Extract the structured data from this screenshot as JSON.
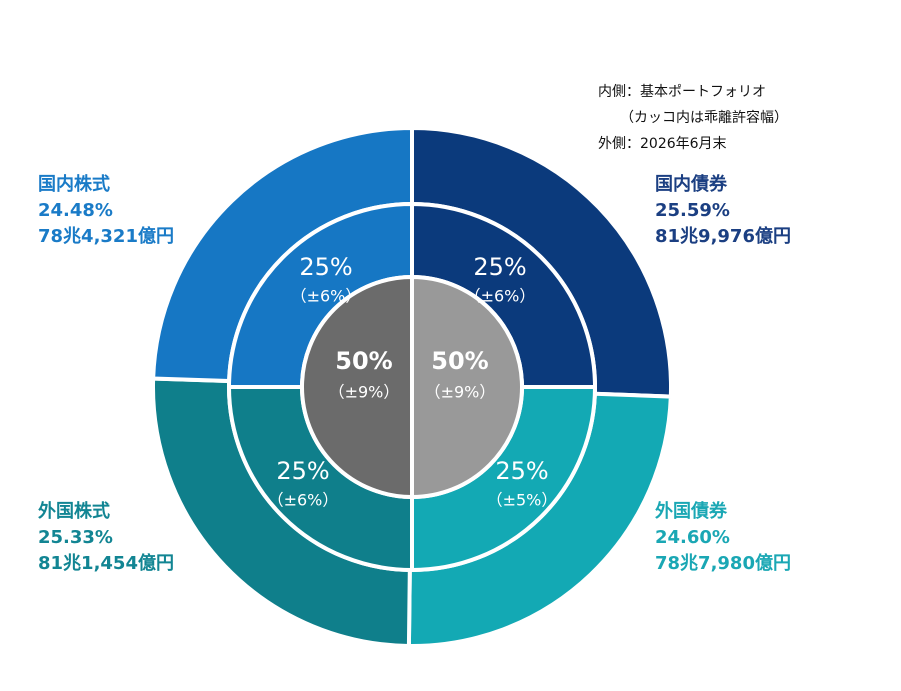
{
  "chart_data": {
    "type": "nested-pie",
    "notes": [
      "内側：基本ポートフォリオ",
      "（カッコ内は乖離許容幅）",
      "外側：2026年6月末"
    ],
    "outer": {
      "categories": [
        "国内債券",
        "外国債券",
        "外国株式",
        "国内株式"
      ],
      "values": [
        25.59,
        24.6,
        25.33,
        24.48
      ],
      "value_labels": [
        "25.59%",
        "24.60%",
        "25.33%",
        "24.48%"
      ],
      "amounts": [
        "81兆9,976億円",
        "78兆7,980億円",
        "81兆1,454億円",
        "78兆4,321億円"
      ],
      "colors": [
        "#0b3a7c",
        "#13a9b4",
        "#0f7f8b",
        "#1677c4"
      ],
      "label_colors": [
        "#1b3f82",
        "#1aa7b4",
        "#128593",
        "#1a7bc7"
      ]
    },
    "middle": {
      "values": [
        25,
        25,
        25,
        25
      ],
      "value_labels": [
        "25%",
        "25%",
        "25%",
        "25%"
      ],
      "bands": [
        "（±6%）",
        "（±5%）",
        "（±6%）",
        "（±6%）"
      ],
      "colors": [
        "#0b3a7c",
        "#13a9b4",
        "#0f7f8b",
        "#1677c4"
      ]
    },
    "inner": {
      "values": [
        50,
        50
      ],
      "value_labels": [
        "50%",
        "50%"
      ],
      "bands": [
        "（±9%）",
        "（±9%）"
      ],
      "colors": [
        "#999999",
        "#6b6b6b"
      ]
    }
  }
}
